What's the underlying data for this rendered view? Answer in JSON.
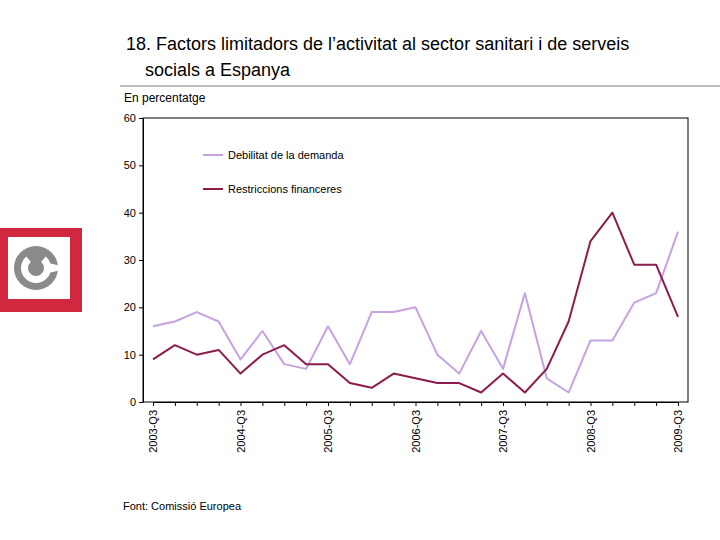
{
  "chart_data": {
    "type": "line",
    "title": "18. Factors limitadors de l’activitat al sector sanitari i de serveis socials a Espanya",
    "subtitle": "En percentatge",
    "source": "Font: Comissió Europea",
    "categories": [
      "2003-Q3",
      null,
      null,
      null,
      "2004-Q3",
      null,
      null,
      null,
      "2005-Q3",
      null,
      null,
      null,
      "2006-Q3",
      null,
      null,
      null,
      "2007-Q3",
      null,
      null,
      null,
      "2008-Q3",
      null,
      null,
      null,
      "2009-Q3"
    ],
    "series": [
      {
        "name": "Debilitat de la demanda",
        "color": "#c6a2e2",
        "values": [
          16,
          17,
          19,
          17,
          9,
          15,
          8,
          7,
          16,
          8,
          19,
          19,
          20,
          10,
          6,
          15,
          7,
          23,
          5,
          2,
          13,
          13,
          21,
          23,
          36
        ]
      },
      {
        "name": "Restriccions financeres",
        "color": "#8c1c4c",
        "values": [
          9,
          12,
          10,
          11,
          6,
          10,
          12,
          8,
          8,
          4,
          3,
          6,
          5,
          4,
          4,
          2,
          6,
          2,
          7,
          17,
          34,
          40,
          29,
          29,
          18
        ]
      }
    ],
    "ylim": [
      0,
      60
    ],
    "yticks": [
      0,
      10,
      20,
      30,
      40,
      50,
      60
    ],
    "grid": false,
    "legend": "upper left"
  }
}
